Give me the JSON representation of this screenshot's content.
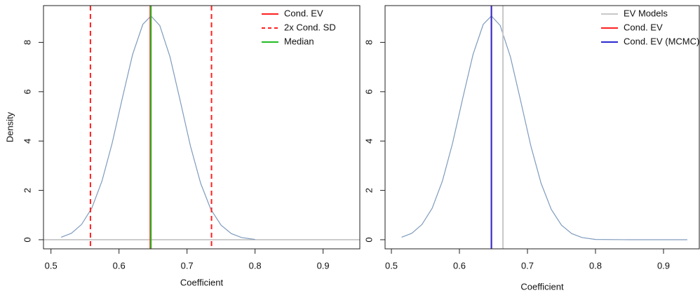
{
  "chart_data": [
    {
      "type": "density",
      "xlabel": "Coefficient",
      "ylabel": "Density",
      "x": [
        0.515,
        0.53,
        0.545,
        0.56,
        0.575,
        0.59,
        0.605,
        0.62,
        0.635,
        0.647,
        0.66,
        0.675,
        0.69,
        0.705,
        0.72,
        0.735,
        0.75,
        0.765,
        0.78,
        0.8
      ],
      "values": [
        0.1,
        0.26,
        0.62,
        1.28,
        2.38,
        3.92,
        5.75,
        7.51,
        8.73,
        9.07,
        8.68,
        7.41,
        5.63,
        3.8,
        2.29,
        1.23,
        0.59,
        0.25,
        0.09,
        0.01
      ],
      "color": "#7f9bbd",
      "zero_line": true,
      "zero_line_color": "#bbbbbb",
      "xlim": [
        0.489,
        0.954
      ],
      "xticks": [
        0.5,
        0.6,
        0.7,
        0.8,
        0.9
      ],
      "ylim": [
        -0.37,
        9.49
      ],
      "yticks": [
        0,
        2,
        4,
        6,
        8
      ],
      "legend": "topright",
      "series": [
        {
          "name": "Cond. EV",
          "color": "#ff2020",
          "linestyle": "solid",
          "x": [
            0.646
          ]
        },
        {
          "name": "2x Cond. SD",
          "color": "#ff2020",
          "linestyle": "dashed",
          "x": [
            0.558,
            0.736
          ]
        },
        {
          "name": "Median",
          "color": "#22bb22",
          "linestyle": "solid",
          "x": [
            0.647
          ]
        }
      ]
    },
    {
      "type": "density",
      "xlabel": "Coefficient",
      "x": [
        0.515,
        0.53,
        0.545,
        0.56,
        0.575,
        0.59,
        0.605,
        0.62,
        0.635,
        0.647,
        0.66,
        0.675,
        0.69,
        0.705,
        0.72,
        0.735,
        0.75,
        0.765,
        0.78,
        0.8,
        0.85,
        0.9,
        0.935
      ],
      "values": [
        0.1,
        0.26,
        0.62,
        1.28,
        2.38,
        3.92,
        5.75,
        7.51,
        8.73,
        9.07,
        8.68,
        7.41,
        5.63,
        3.8,
        2.29,
        1.23,
        0.59,
        0.25,
        0.09,
        0.01,
        0,
        0,
        0
      ],
      "color": "#7f9bbd",
      "zero_line": false,
      "xlim": [
        0.4907,
        0.9526
      ],
      "xticks": [
        0.5,
        0.6,
        0.7,
        0.8,
        0.9
      ],
      "ylim": [
        -0.37,
        9.49
      ],
      "yticks": [
        0,
        2,
        4,
        6,
        8
      ],
      "legend": "topright",
      "series": [
        {
          "name": "EV Models",
          "color": "#c8c8c8",
          "linestyle": "solid",
          "x": [
            0.664
          ]
        },
        {
          "name": "Cond. EV",
          "color": "#ff2020",
          "linestyle": "solid",
          "x": [
            0.647
          ]
        },
        {
          "name": "Cond. EV (MCMC)",
          "color": "#2a2ad0",
          "linestyle": "solid",
          "x": [
            0.647
          ]
        }
      ]
    }
  ]
}
